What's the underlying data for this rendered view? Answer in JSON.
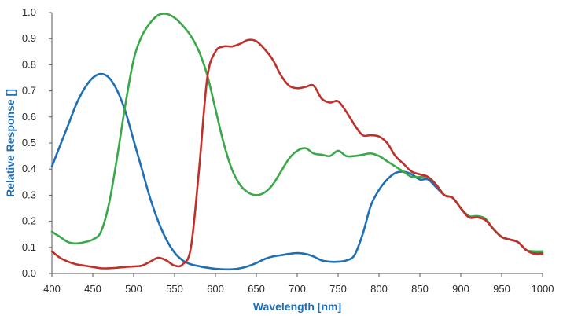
{
  "chart_data": {
    "type": "line",
    "title": "",
    "xlabel": "Wavelength [nm]",
    "ylabel": "Relative Response []",
    "xlim": [
      400,
      1000
    ],
    "ylim": [
      0,
      1.0
    ],
    "x_ticks": [
      400,
      450,
      500,
      550,
      600,
      650,
      700,
      750,
      800,
      850,
      900,
      950,
      1000
    ],
    "y_ticks": [
      0.0,
      0.1,
      0.2,
      0.3,
      0.4,
      0.5,
      0.6,
      0.7,
      0.8,
      0.9,
      1.0
    ],
    "x_tick_labels": [
      "400",
      "450",
      "500",
      "550",
      "600",
      "650",
      "700",
      "750",
      "800",
      "850",
      "900",
      "950",
      "1000"
    ],
    "y_tick_labels": [
      "0.0",
      "0.1",
      "0.2",
      "0.3",
      "0.4",
      "0.5",
      "0.6",
      "0.7",
      "0.8",
      "0.9",
      "1.0"
    ],
    "grid": false,
    "legend": "none",
    "series": [
      {
        "color": "#1f6fb5",
        "points": [
          [
            400,
            0.41
          ],
          [
            410,
            0.49
          ],
          [
            420,
            0.57
          ],
          [
            430,
            0.65
          ],
          [
            440,
            0.71
          ],
          [
            450,
            0.75
          ],
          [
            460,
            0.765
          ],
          [
            470,
            0.75
          ],
          [
            480,
            0.7
          ],
          [
            490,
            0.62
          ],
          [
            500,
            0.51
          ],
          [
            510,
            0.4
          ],
          [
            520,
            0.29
          ],
          [
            530,
            0.2
          ],
          [
            540,
            0.13
          ],
          [
            550,
            0.08
          ],
          [
            560,
            0.05
          ],
          [
            570,
            0.035
          ],
          [
            580,
            0.028
          ],
          [
            590,
            0.022
          ],
          [
            600,
            0.018
          ],
          [
            610,
            0.016
          ],
          [
            620,
            0.016
          ],
          [
            630,
            0.02
          ],
          [
            640,
            0.028
          ],
          [
            650,
            0.04
          ],
          [
            660,
            0.055
          ],
          [
            670,
            0.065
          ],
          [
            680,
            0.07
          ],
          [
            690,
            0.075
          ],
          [
            700,
            0.078
          ],
          [
            710,
            0.075
          ],
          [
            720,
            0.065
          ],
          [
            730,
            0.05
          ],
          [
            740,
            0.045
          ],
          [
            750,
            0.045
          ],
          [
            760,
            0.05
          ],
          [
            770,
            0.07
          ],
          [
            780,
            0.15
          ],
          [
            790,
            0.26
          ],
          [
            800,
            0.32
          ],
          [
            810,
            0.36
          ],
          [
            820,
            0.385
          ],
          [
            830,
            0.39
          ],
          [
            840,
            0.38
          ],
          [
            850,
            0.36
          ],
          [
            860,
            0.36
          ],
          [
            870,
            0.33
          ],
          [
            880,
            0.3
          ],
          [
            890,
            0.29
          ],
          [
            900,
            0.25
          ],
          [
            910,
            0.215
          ],
          [
            920,
            0.215
          ],
          [
            930,
            0.205
          ],
          [
            940,
            0.17
          ],
          [
            950,
            0.14
          ],
          [
            960,
            0.13
          ],
          [
            970,
            0.12
          ],
          [
            980,
            0.09
          ],
          [
            990,
            0.08
          ],
          [
            1000,
            0.08
          ]
        ]
      },
      {
        "color": "#3aa84a",
        "points": [
          [
            400,
            0.16
          ],
          [
            410,
            0.14
          ],
          [
            420,
            0.12
          ],
          [
            430,
            0.115
          ],
          [
            440,
            0.12
          ],
          [
            450,
            0.13
          ],
          [
            460,
            0.16
          ],
          [
            470,
            0.27
          ],
          [
            480,
            0.45
          ],
          [
            490,
            0.65
          ],
          [
            500,
            0.82
          ],
          [
            510,
            0.91
          ],
          [
            520,
            0.96
          ],
          [
            530,
            0.99
          ],
          [
            540,
            0.995
          ],
          [
            550,
            0.98
          ],
          [
            560,
            0.95
          ],
          [
            570,
            0.91
          ],
          [
            580,
            0.85
          ],
          [
            590,
            0.76
          ],
          [
            600,
            0.63
          ],
          [
            610,
            0.5
          ],
          [
            620,
            0.4
          ],
          [
            630,
            0.34
          ],
          [
            640,
            0.31
          ],
          [
            650,
            0.3
          ],
          [
            660,
            0.31
          ],
          [
            670,
            0.34
          ],
          [
            680,
            0.39
          ],
          [
            690,
            0.44
          ],
          [
            700,
            0.47
          ],
          [
            710,
            0.48
          ],
          [
            720,
            0.46
          ],
          [
            730,
            0.455
          ],
          [
            740,
            0.45
          ],
          [
            750,
            0.47
          ],
          [
            760,
            0.45
          ],
          [
            770,
            0.45
          ],
          [
            780,
            0.455
          ],
          [
            790,
            0.46
          ],
          [
            800,
            0.45
          ],
          [
            810,
            0.43
          ],
          [
            820,
            0.41
          ],
          [
            830,
            0.39
          ],
          [
            840,
            0.37
          ],
          [
            850,
            0.37
          ],
          [
            860,
            0.37
          ],
          [
            870,
            0.34
          ],
          [
            880,
            0.3
          ],
          [
            890,
            0.29
          ],
          [
            900,
            0.25
          ],
          [
            910,
            0.22
          ],
          [
            920,
            0.22
          ],
          [
            930,
            0.21
          ],
          [
            940,
            0.17
          ],
          [
            950,
            0.14
          ],
          [
            960,
            0.13
          ],
          [
            970,
            0.12
          ],
          [
            980,
            0.09
          ],
          [
            990,
            0.085
          ],
          [
            1000,
            0.085
          ]
        ]
      },
      {
        "color": "#c0302b",
        "points": [
          [
            400,
            0.085
          ],
          [
            410,
            0.06
          ],
          [
            420,
            0.045
          ],
          [
            430,
            0.035
          ],
          [
            440,
            0.03
          ],
          [
            450,
            0.025
          ],
          [
            460,
            0.02
          ],
          [
            470,
            0.02
          ],
          [
            480,
            0.022
          ],
          [
            490,
            0.025
          ],
          [
            500,
            0.027
          ],
          [
            510,
            0.03
          ],
          [
            520,
            0.045
          ],
          [
            530,
            0.06
          ],
          [
            540,
            0.05
          ],
          [
            550,
            0.03
          ],
          [
            560,
            0.035
          ],
          [
            570,
            0.1
          ],
          [
            580,
            0.4
          ],
          [
            590,
            0.75
          ],
          [
            600,
            0.85
          ],
          [
            610,
            0.87
          ],
          [
            620,
            0.87
          ],
          [
            630,
            0.88
          ],
          [
            640,
            0.895
          ],
          [
            650,
            0.89
          ],
          [
            660,
            0.86
          ],
          [
            670,
            0.82
          ],
          [
            680,
            0.76
          ],
          [
            690,
            0.72
          ],
          [
            700,
            0.71
          ],
          [
            710,
            0.715
          ],
          [
            720,
            0.72
          ],
          [
            730,
            0.67
          ],
          [
            740,
            0.655
          ],
          [
            750,
            0.66
          ],
          [
            760,
            0.62
          ],
          [
            770,
            0.57
          ],
          [
            780,
            0.53
          ],
          [
            790,
            0.53
          ],
          [
            800,
            0.525
          ],
          [
            810,
            0.5
          ],
          [
            820,
            0.45
          ],
          [
            830,
            0.42
          ],
          [
            840,
            0.39
          ],
          [
            850,
            0.38
          ],
          [
            860,
            0.37
          ],
          [
            870,
            0.34
          ],
          [
            880,
            0.3
          ],
          [
            890,
            0.29
          ],
          [
            900,
            0.25
          ],
          [
            910,
            0.215
          ],
          [
            920,
            0.215
          ],
          [
            930,
            0.205
          ],
          [
            940,
            0.17
          ],
          [
            950,
            0.14
          ],
          [
            960,
            0.13
          ],
          [
            970,
            0.12
          ],
          [
            980,
            0.09
          ],
          [
            990,
            0.075
          ],
          [
            1000,
            0.075
          ]
        ]
      }
    ]
  }
}
